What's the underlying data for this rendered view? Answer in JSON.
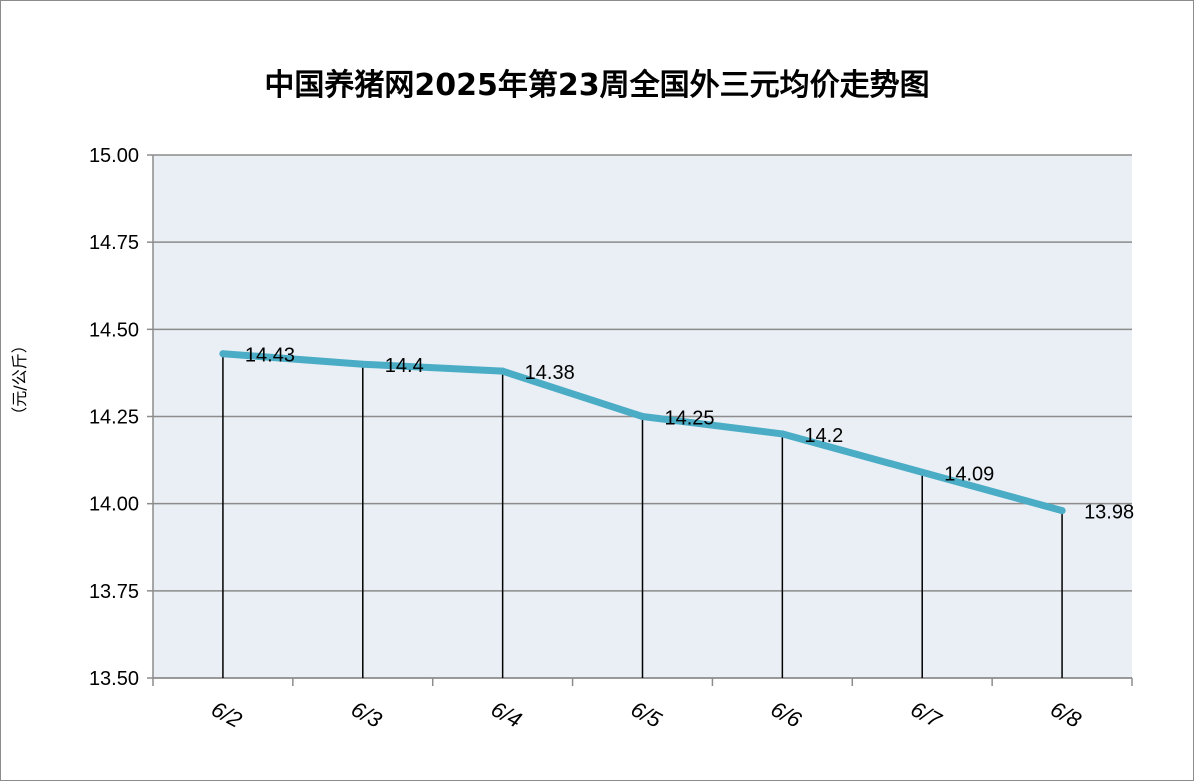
{
  "chart_data": {
    "type": "line",
    "title": "中国养猪网2025年第23周全国外三元均价走势图",
    "xlabel": "",
    "ylabel": "（元/公斤）",
    "categories": [
      "6/2",
      "6/3",
      "6/4",
      "6/5",
      "6/6",
      "6/7",
      "6/8"
    ],
    "series": [
      {
        "values": [
          14.43,
          14.4,
          14.38,
          14.25,
          14.2,
          14.09,
          13.98
        ],
        "data_labels": [
          "14.43",
          "14.4",
          "14.38",
          "14.25",
          "14.2",
          "14.09",
          "13.98"
        ]
      }
    ],
    "ylim": [
      13.5,
      15.0
    ],
    "yticks": [
      "15.00",
      "14.75",
      "14.50",
      "14.25",
      "14.00",
      "13.75",
      "13.50"
    ],
    "ytick_values": [
      15.0,
      14.75,
      14.5,
      14.25,
      14.0,
      13.75,
      13.5
    ],
    "grid": true,
    "drop_lines": true,
    "colors": {
      "line": "#4bacc6",
      "plot_bg": "#e9eff4",
      "grid": "#8c8c8c"
    }
  }
}
